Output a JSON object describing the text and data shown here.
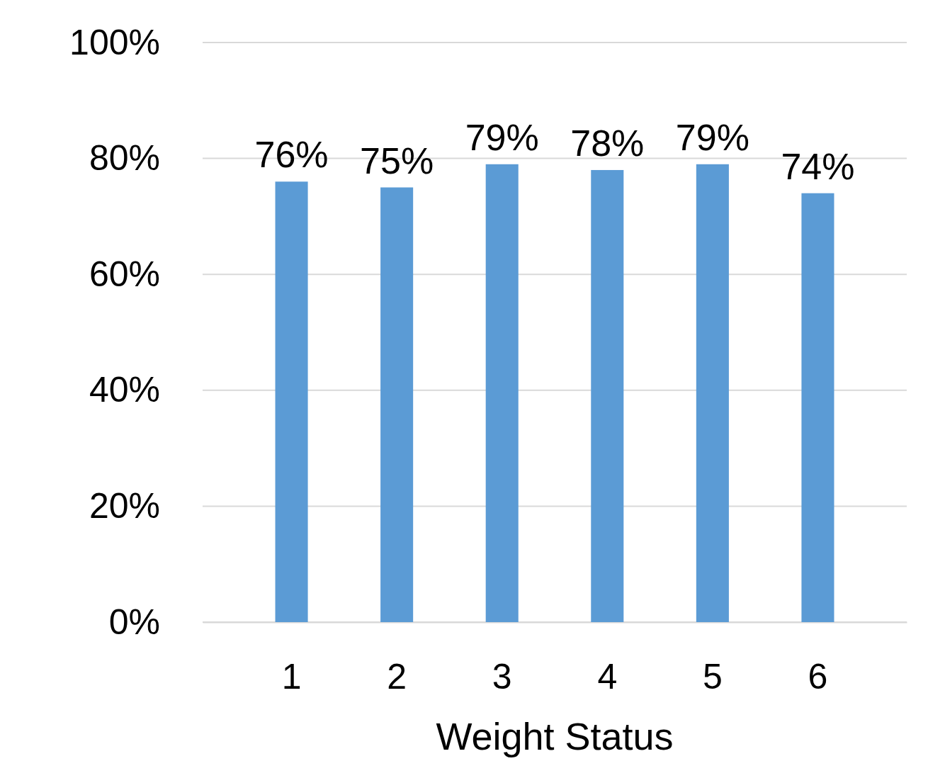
{
  "chart_data": {
    "type": "bar",
    "xlabel": "Weight Status",
    "categories": [
      "1",
      "2",
      "3",
      "4",
      "5",
      "6"
    ],
    "values": [
      76,
      75,
      79,
      78,
      79,
      74
    ],
    "color": "#5b9bd5",
    "value_labels": [
      "76%",
      "75%",
      "79%",
      "78%",
      "79%",
      "74%"
    ],
    "ylim": [
      0,
      100
    ],
    "yticks": [
      {
        "value": 0,
        "label": "0%"
      },
      {
        "value": 20,
        "label": "20%"
      },
      {
        "value": 40,
        "label": "40%"
      },
      {
        "value": 60,
        "label": "60%"
      },
      {
        "value": 80,
        "label": "80%"
      },
      {
        "value": 100,
        "label": "100%"
      }
    ],
    "grid": "y"
  }
}
